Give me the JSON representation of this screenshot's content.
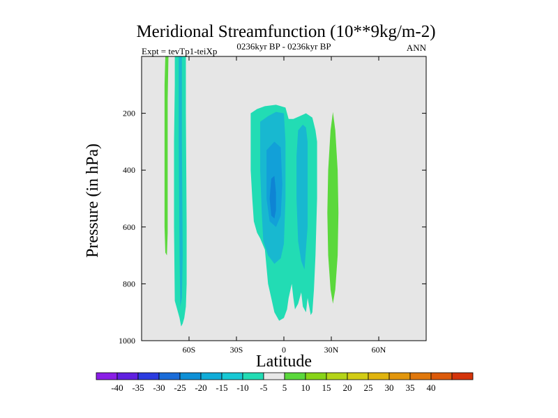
{
  "chart_data": {
    "type": "contour",
    "title": "Meridional Streamfunction (10**9kg/m-2)",
    "left_string": "Expt = tevTp1-teiXp",
    "center_string": "0236kyr BP - 0236kyr BP",
    "right_string": "ANN",
    "xlabel": "Latitude",
    "ylabel": "Pressure (in hPa)",
    "xlim": [
      -90,
      90
    ],
    "ylim": [
      1000,
      0
    ],
    "x_ticks": [
      {
        "value": -60,
        "label": "60S"
      },
      {
        "value": -30,
        "label": "30S"
      },
      {
        "value": 0,
        "label": "0"
      },
      {
        "value": 30,
        "label": "30N"
      },
      {
        "value": 60,
        "label": "60N"
      }
    ],
    "y_ticks": [
      {
        "value": 200,
        "label": "200"
      },
      {
        "value": 400,
        "label": "400"
      },
      {
        "value": 600,
        "label": "600"
      },
      {
        "value": 800,
        "label": "800"
      },
      {
        "value": 1000,
        "label": "1000"
      }
    ],
    "background_color": "#e6e6e6",
    "contour_regions": [
      {
        "name": "south-polar-positive",
        "level": 5,
        "color": "#5bd83c",
        "points": [
          [
            -75,
            0
          ],
          [
            -73,
            0
          ],
          [
            -73.5,
            150
          ],
          [
            -73.5,
            400
          ],
          [
            -73.5,
            620
          ],
          [
            -74,
            700
          ],
          [
            -75,
            690
          ],
          [
            -75.5,
            600
          ],
          [
            -75.5,
            300
          ],
          [
            -75.5,
            100
          ]
        ]
      },
      {
        "name": "south-cell-outer",
        "level": -5,
        "color": "#22dcb4",
        "points": [
          [
            -69,
            0
          ],
          [
            -62,
            0
          ],
          [
            -62,
            200
          ],
          [
            -61.5,
            600
          ],
          [
            -61.5,
            800
          ],
          [
            -62,
            880
          ],
          [
            -63,
            920
          ],
          [
            -64,
            940
          ],
          [
            -65,
            950
          ],
          [
            -66,
            920
          ],
          [
            -68,
            880
          ],
          [
            -69,
            860
          ],
          [
            -69.5,
            600
          ],
          [
            -69.5,
            300
          ],
          [
            -69,
            100
          ]
        ]
      },
      {
        "name": "south-cell-inner",
        "level": -10,
        "color": "#18b8d0",
        "points": [
          [
            -66.5,
            0
          ],
          [
            -64.5,
            0
          ],
          [
            -64.5,
            300
          ],
          [
            -64,
            700
          ],
          [
            -64.5,
            850
          ],
          [
            -65.5,
            880
          ],
          [
            -66,
            700
          ],
          [
            -66.5,
            300
          ]
        ]
      },
      {
        "name": "main-cell-outer",
        "level": -5,
        "color": "#22dcb4",
        "points": [
          [
            -21,
            200
          ],
          [
            -17,
            185
          ],
          [
            -12,
            175
          ],
          [
            -5,
            170
          ],
          [
            1,
            180
          ],
          [
            3,
            220
          ],
          [
            6,
            220
          ],
          [
            10,
            210
          ],
          [
            14,
            200
          ],
          [
            18,
            215
          ],
          [
            20,
            260
          ],
          [
            21,
            300
          ],
          [
            21,
            500
          ],
          [
            20,
            700
          ],
          [
            19,
            820
          ],
          [
            18,
            900
          ],
          [
            17,
            910
          ],
          [
            15,
            850
          ],
          [
            14,
            900
          ],
          [
            12,
            880
          ],
          [
            11,
            830
          ],
          [
            9,
            870
          ],
          [
            7,
            890
          ],
          [
            6,
            850
          ],
          [
            5,
            800
          ],
          [
            3,
            850
          ],
          [
            2,
            890
          ],
          [
            0,
            920
          ],
          [
            -3,
            930
          ],
          [
            -6,
            900
          ],
          [
            -8,
            850
          ],
          [
            -10,
            800
          ],
          [
            -12,
            680
          ],
          [
            -15,
            640
          ],
          [
            -17,
            620
          ],
          [
            -19,
            580
          ],
          [
            -20,
            500
          ],
          [
            -21,
            400
          ],
          [
            -21,
            300
          ]
        ]
      },
      {
        "name": "main-cell-mid",
        "level": -10,
        "color": "#18b8d0",
        "points": [
          [
            -15,
            230
          ],
          [
            -10,
            210
          ],
          [
            -5,
            195
          ],
          [
            0,
            200
          ],
          [
            1,
            300
          ],
          [
            1,
            500
          ],
          [
            0,
            660
          ],
          [
            -2,
            710
          ],
          [
            -6,
            730
          ],
          [
            -10,
            700
          ],
          [
            -13,
            650
          ],
          [
            -14,
            550
          ],
          [
            -15,
            400
          ]
        ]
      },
      {
        "name": "main-cell-core",
        "level": -15,
        "color": "#12a0d8",
        "points": [
          [
            -11,
            330
          ],
          [
            -6,
            300
          ],
          [
            -2,
            320
          ],
          [
            -1,
            450
          ],
          [
            -2,
            560
          ],
          [
            -5,
            600
          ],
          [
            -9,
            580
          ],
          [
            -11,
            500
          ]
        ]
      },
      {
        "name": "main-cell-center",
        "level": -20,
        "color": "#0e84d4",
        "points": [
          [
            -8,
            430
          ],
          [
            -6,
            420
          ],
          [
            -5,
            480
          ],
          [
            -5,
            540
          ],
          [
            -6,
            570
          ],
          [
            -8,
            560
          ],
          [
            -9,
            500
          ]
        ]
      },
      {
        "name": "main-cell-secondary",
        "level": -10,
        "color": "#18b8d0",
        "points": [
          [
            9,
            260
          ],
          [
            12,
            240
          ],
          [
            14,
            250
          ],
          [
            15,
            300
          ],
          [
            15,
            600
          ],
          [
            13,
            750
          ],
          [
            11,
            720
          ],
          [
            9,
            650
          ],
          [
            8,
            500
          ],
          [
            8,
            350
          ]
        ]
      },
      {
        "name": "north-positive",
        "level": 5,
        "color": "#5bd83c",
        "points": [
          [
            31,
            195
          ],
          [
            32.5,
            260
          ],
          [
            34,
            400
          ],
          [
            34.5,
            550
          ],
          [
            34,
            700
          ],
          [
            32.5,
            820
          ],
          [
            31,
            870
          ],
          [
            29.5,
            820
          ],
          [
            28,
            700
          ],
          [
            27.5,
            550
          ],
          [
            28,
            400
          ],
          [
            29.5,
            260
          ]
        ]
      }
    ],
    "colorbar": {
      "colors": [
        "#8a1ee6",
        "#6020e0",
        "#2c3ce0",
        "#1a6cd8",
        "#0e90d6",
        "#10acd8",
        "#18c8d4",
        "#22dcb4",
        "#e8e8e8",
        "#5bd83c",
        "#88d418",
        "#b4d418",
        "#d2cc14",
        "#e0b40e",
        "#e2960c",
        "#e0780c",
        "#dc5a0a",
        "#d4340a"
      ],
      "labels": [
        "-40",
        "-35",
        "-30",
        "-25",
        "-20",
        "-15",
        "-10",
        "-5",
        "5",
        "10",
        "15",
        "20",
        "25",
        "30",
        "35",
        "40"
      ]
    }
  }
}
